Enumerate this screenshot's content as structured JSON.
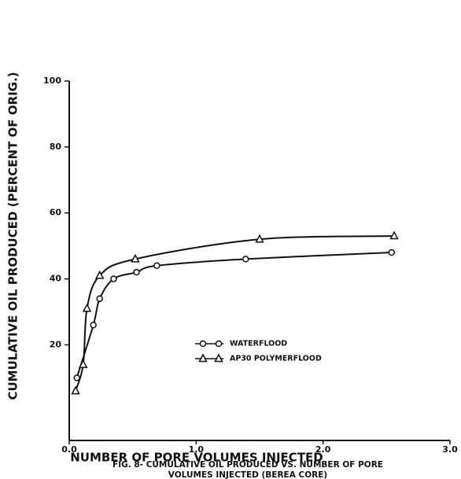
{
  "chart_data": {
    "type": "line",
    "x_label": "NUMBER OF PORE VOLUMES INJECTED",
    "y_label": "CUMULATIVE OIL PRODUCED (PERCENT OF ORIG.)",
    "caption": [
      "FIG. 8- CUMULATIVE OIL PRODUCED VS. NUMBER OF PORE",
      "VOLUMES INJECTED (BEREA CORE)"
    ],
    "xlim": [
      0,
      3
    ],
    "ylim": [
      -9,
      100
    ],
    "xticks": [
      {
        "value": 0,
        "label": "0.0"
      },
      {
        "value": 1,
        "label": "1.0"
      },
      {
        "value": 2,
        "label": "2.0"
      },
      {
        "value": 3,
        "label": "3.0"
      }
    ],
    "yticks": [
      20,
      40,
      60,
      80,
      100
    ],
    "series": [
      {
        "name": "WATERFLOOD",
        "marker": "circle",
        "color": "#111111",
        "x": [
          0.06,
          0.19,
          0.24,
          0.35,
          0.53,
          0.69,
          1.39,
          2.54
        ],
        "values": [
          10,
          26,
          34,
          40,
          42,
          44,
          46,
          48
        ]
      },
      {
        "name": "AP30 POLYMERFLOOD",
        "marker": "triangle",
        "color": "#111111",
        "x": [
          0.05,
          0.11,
          0.14,
          0.24,
          0.52,
          1.5,
          2.56
        ],
        "values": [
          6,
          14,
          31,
          41,
          46,
          52,
          53
        ]
      }
    ]
  }
}
